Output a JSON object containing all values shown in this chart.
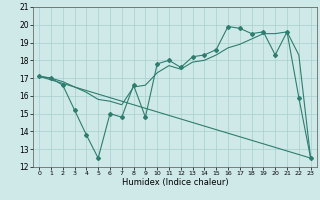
{
  "xlabel": "Humidex (Indice chaleur)",
  "background_color": "#cfe9e9",
  "line_color": "#2e7d6e",
  "xlim": [
    -0.5,
    23.5
  ],
  "ylim": [
    12,
    21
  ],
  "xticks": [
    0,
    1,
    2,
    3,
    4,
    5,
    6,
    7,
    8,
    9,
    10,
    11,
    12,
    13,
    14,
    15,
    16,
    17,
    18,
    19,
    20,
    21,
    22,
    23
  ],
  "yticks": [
    12,
    13,
    14,
    15,
    16,
    17,
    18,
    19,
    20,
    21
  ],
  "series_jagged_x": [
    0,
    1,
    2,
    3,
    4,
    5,
    6,
    7,
    8,
    9,
    10,
    11,
    12,
    13,
    14,
    15,
    16,
    17,
    18,
    19,
    20,
    21,
    22,
    23
  ],
  "series_jagged_y": [
    17.1,
    17.0,
    16.6,
    15.2,
    13.8,
    12.5,
    15.0,
    14.8,
    16.6,
    14.8,
    17.8,
    18.0,
    17.6,
    18.2,
    18.3,
    18.6,
    19.9,
    19.8,
    19.5,
    19.6,
    18.3,
    19.6,
    15.9,
    12.5
  ],
  "series_smooth_x": [
    0,
    1,
    2,
    3,
    4,
    5,
    6,
    7,
    8,
    9,
    10,
    11,
    12,
    13,
    14,
    15,
    16,
    17,
    18,
    19,
    20,
    21,
    22,
    23
  ],
  "series_smooth_y": [
    17.1,
    17.0,
    16.8,
    16.5,
    16.2,
    15.8,
    15.7,
    15.5,
    16.5,
    16.6,
    17.3,
    17.7,
    17.5,
    17.9,
    18.0,
    18.3,
    18.7,
    18.9,
    19.2,
    19.5,
    19.5,
    19.6,
    18.3,
    12.5
  ],
  "series_trend_x": [
    0,
    23
  ],
  "series_trend_y": [
    17.1,
    12.5
  ]
}
